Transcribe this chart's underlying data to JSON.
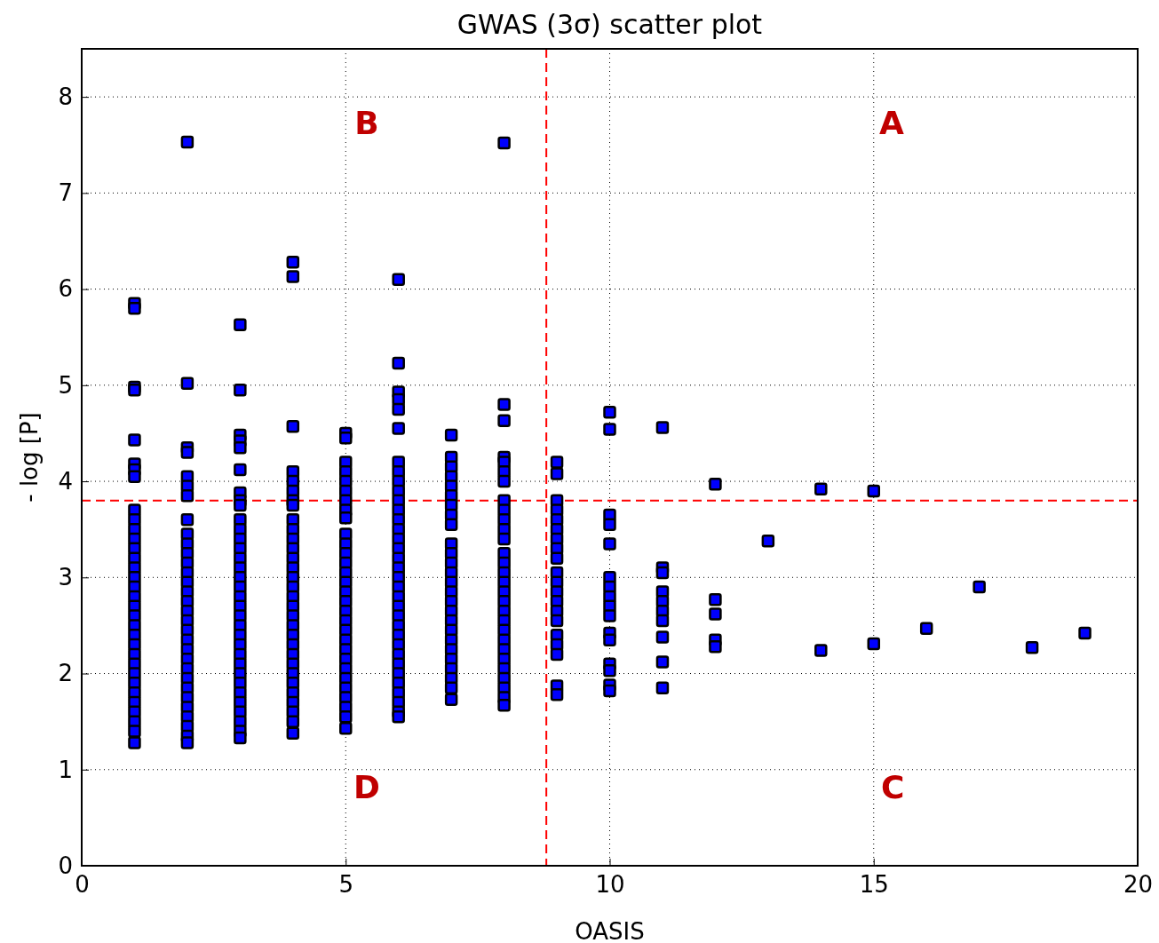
{
  "chart_data": {
    "type": "scatter",
    "title": "GWAS (3σ) scatter plot",
    "xlabel": "OASIS",
    "ylabel": "- log [P]",
    "xlim": [
      0,
      20
    ],
    "xticks": [
      0,
      5,
      10,
      15,
      20
    ],
    "ylim": [
      0,
      8.5
    ],
    "yticks": [
      0,
      1,
      2,
      3,
      4,
      5,
      6,
      7,
      8
    ],
    "grid": true,
    "marker": "square",
    "series": [
      {
        "color": "#0000ff",
        "x": [
          1,
          1,
          1,
          1,
          1,
          1,
          1,
          1,
          1,
          1,
          1,
          1,
          1,
          1,
          1,
          1,
          1,
          1,
          1,
          1,
          1,
          1,
          1,
          1,
          1,
          1,
          1,
          1,
          1,
          1,
          1,
          1,
          1,
          2,
          2,
          2,
          2,
          2,
          2,
          2,
          2,
          2,
          2,
          2,
          2,
          2,
          2,
          2,
          2,
          2,
          2,
          2,
          2,
          2,
          2,
          2,
          2,
          2,
          2,
          2,
          2,
          2,
          2,
          2,
          3,
          3,
          3,
          3,
          3,
          3,
          3,
          3,
          3,
          3,
          3,
          3,
          3,
          3,
          3,
          3,
          3,
          3,
          3,
          3,
          3,
          3,
          3,
          3,
          3,
          3,
          3,
          3,
          3,
          3,
          3,
          3,
          3,
          4,
          4,
          4,
          4,
          4,
          4,
          4,
          4,
          4,
          4,
          4,
          4,
          4,
          4,
          4,
          4,
          4,
          4,
          4,
          4,
          4,
          4,
          4,
          4,
          4,
          4,
          4,
          4,
          4,
          4,
          4,
          5,
          5,
          5,
          5,
          5,
          5,
          5,
          5,
          5,
          5,
          5,
          5,
          5,
          5,
          5,
          5,
          5,
          5,
          5,
          5,
          5,
          5,
          5,
          5,
          5,
          5,
          5,
          5,
          5,
          5,
          6,
          6,
          6,
          6,
          6,
          6,
          6,
          6,
          6,
          6,
          6,
          6,
          6,
          6,
          6,
          6,
          6,
          6,
          6,
          6,
          6,
          6,
          6,
          6,
          6,
          6,
          6,
          6,
          6,
          6,
          6,
          6,
          6,
          6,
          7,
          7,
          7,
          7,
          7,
          7,
          7,
          7,
          7,
          7,
          7,
          7,
          7,
          7,
          7,
          7,
          7,
          7,
          7,
          7,
          7,
          7,
          7,
          7,
          7,
          7,
          8,
          8,
          8,
          8,
          8,
          8,
          8,
          8,
          8,
          8,
          8,
          8,
          8,
          8,
          8,
          8,
          8,
          8,
          8,
          8,
          8,
          8,
          8,
          8,
          8,
          8,
          8,
          8,
          8,
          9,
          9,
          9,
          9,
          9,
          9,
          9,
          9,
          9,
          9,
          9,
          9,
          9,
          9,
          9,
          9,
          9,
          9,
          9,
          9,
          10,
          10,
          10,
          10,
          10,
          10,
          10,
          10,
          10,
          10,
          10,
          10,
          10,
          10,
          10,
          10,
          11,
          11,
          11,
          11,
          11,
          11,
          11,
          11,
          11,
          11,
          12,
          12,
          12,
          12,
          12,
          13,
          14,
          14,
          15,
          15,
          16,
          17,
          18,
          19
        ],
        "values": [
          5.85,
          5.8,
          4.98,
          4.95,
          4.43,
          4.18,
          4.12,
          4.05,
          3.7,
          3.6,
          3.5,
          3.4,
          3.3,
          3.2,
          3.1,
          3.0,
          2.9,
          2.8,
          2.7,
          2.6,
          2.5,
          2.4,
          2.3,
          2.2,
          2.1,
          2.0,
          1.9,
          1.8,
          1.7,
          1.6,
          1.5,
          1.4,
          1.28,
          7.53,
          5.02,
          4.35,
          4.3,
          4.05,
          3.95,
          3.85,
          3.6,
          3.45,
          3.35,
          3.25,
          3.15,
          3.05,
          2.95,
          2.85,
          2.75,
          2.65,
          2.55,
          2.45,
          2.35,
          2.25,
          2.15,
          2.05,
          1.95,
          1.85,
          1.75,
          1.65,
          1.55,
          1.45,
          1.35,
          1.28,
          5.63,
          4.95,
          4.48,
          4.42,
          4.35,
          4.12,
          3.88,
          3.8,
          3.75,
          3.6,
          3.5,
          3.4,
          3.3,
          3.2,
          3.1,
          3.0,
          2.9,
          2.8,
          2.7,
          2.6,
          2.5,
          2.4,
          2.3,
          2.2,
          2.1,
          2.0,
          1.9,
          1.8,
          1.7,
          1.6,
          1.5,
          1.4,
          1.33,
          6.28,
          6.13,
          4.57,
          4.1,
          4.0,
          3.9,
          3.8,
          3.75,
          3.6,
          3.5,
          3.4,
          3.3,
          3.2,
          3.1,
          3.0,
          2.9,
          2.8,
          2.7,
          2.6,
          2.5,
          2.4,
          2.3,
          2.2,
          2.1,
          2.0,
          1.9,
          1.8,
          1.7,
          1.6,
          1.5,
          1.38,
          4.5,
          4.45,
          4.2,
          4.1,
          4.0,
          3.9,
          3.8,
          3.7,
          3.62,
          3.45,
          3.35,
          3.25,
          3.15,
          3.05,
          2.95,
          2.85,
          2.75,
          2.65,
          2.55,
          2.45,
          2.35,
          2.25,
          2.15,
          2.05,
          1.95,
          1.85,
          1.75,
          1.65,
          1.55,
          1.43,
          6.1,
          5.23,
          4.93,
          4.85,
          4.75,
          4.55,
          4.2,
          4.1,
          4.0,
          3.9,
          3.8,
          3.7,
          3.6,
          3.5,
          3.4,
          3.3,
          3.2,
          3.1,
          3.0,
          2.9,
          2.8,
          2.7,
          2.6,
          2.5,
          2.4,
          2.3,
          2.2,
          2.1,
          2.0,
          1.9,
          1.8,
          1.7,
          1.6,
          1.55,
          4.48,
          4.25,
          4.15,
          4.05,
          3.95,
          3.85,
          3.75,
          3.65,
          3.55,
          3.35,
          3.25,
          3.15,
          3.05,
          2.95,
          2.85,
          2.75,
          2.65,
          2.55,
          2.45,
          2.35,
          2.25,
          2.15,
          2.05,
          1.95,
          1.85,
          1.73,
          7.52,
          4.8,
          4.63,
          4.25,
          4.2,
          4.1,
          4.0,
          3.8,
          3.7,
          3.6,
          3.5,
          3.4,
          3.25,
          3.15,
          3.05,
          2.95,
          2.85,
          2.75,
          2.65,
          2.55,
          2.45,
          2.35,
          2.25,
          2.15,
          2.05,
          1.95,
          1.85,
          1.75,
          1.67,
          4.2,
          4.08,
          3.8,
          3.7,
          3.6,
          3.5,
          3.4,
          3.3,
          3.2,
          3.05,
          2.95,
          2.85,
          2.75,
          2.65,
          2.55,
          2.4,
          2.3,
          2.2,
          1.87,
          1.78,
          4.72,
          4.54,
          3.65,
          3.55,
          3.35,
          3.0,
          2.9,
          2.8,
          2.7,
          2.6,
          2.42,
          2.35,
          2.1,
          2.03,
          1.88,
          1.82,
          4.56,
          3.1,
          3.05,
          2.85,
          2.75,
          2.65,
          2.55,
          2.38,
          2.12,
          1.85,
          3.97,
          2.77,
          2.62,
          2.35,
          2.28,
          3.38,
          3.92,
          2.24,
          3.9,
          2.31,
          2.47,
          2.9,
          2.27,
          2.42
        ]
      }
    ],
    "ref_lines": [
      {
        "axis": "x",
        "value": 8.8,
        "color": "#ff0000",
        "line_style": "dashed"
      },
      {
        "axis": "y",
        "value": 3.8,
        "color": "#ff0000",
        "line_style": "dashed"
      }
    ],
    "annotations": [
      "A",
      "B",
      "C",
      "D"
    ]
  }
}
